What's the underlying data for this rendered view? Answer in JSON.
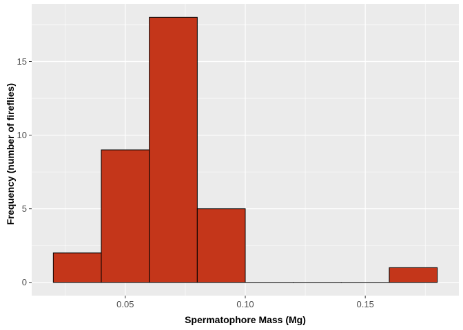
{
  "chart_data": {
    "type": "bar",
    "title": "",
    "xlabel": "Spermatophore Mass (Mg)",
    "ylabel": "Frequency (number of fireflies)",
    "bins": [
      {
        "x0": 0.02,
        "x1": 0.04,
        "count": 2
      },
      {
        "x0": 0.04,
        "x1": 0.06,
        "count": 9
      },
      {
        "x0": 0.06,
        "x1": 0.08,
        "count": 18
      },
      {
        "x0": 0.08,
        "x1": 0.1,
        "count": 5
      },
      {
        "x0": 0.1,
        "x1": 0.12,
        "count": 0
      },
      {
        "x0": 0.12,
        "x1": 0.14,
        "count": 0
      },
      {
        "x0": 0.14,
        "x1": 0.16,
        "count": 0
      },
      {
        "x0": 0.16,
        "x1": 0.18,
        "count": 1
      }
    ],
    "x_ticks": [
      0.05,
      0.1,
      0.15
    ],
    "x_tick_labels": [
      "0.05",
      "0.10",
      "0.15"
    ],
    "y_ticks": [
      0,
      5,
      10,
      15
    ],
    "y_tick_labels": [
      "0",
      "5",
      "10",
      "15"
    ],
    "xlim": [
      0.011,
      0.189
    ],
    "ylim": [
      -0.9,
      18.9
    ],
    "grid": true,
    "colors": {
      "bar_fill": "#C4361A",
      "bar_stroke": "#000000",
      "panel_bg": "#EBEBEB",
      "grid": "#FFFFFF"
    }
  }
}
